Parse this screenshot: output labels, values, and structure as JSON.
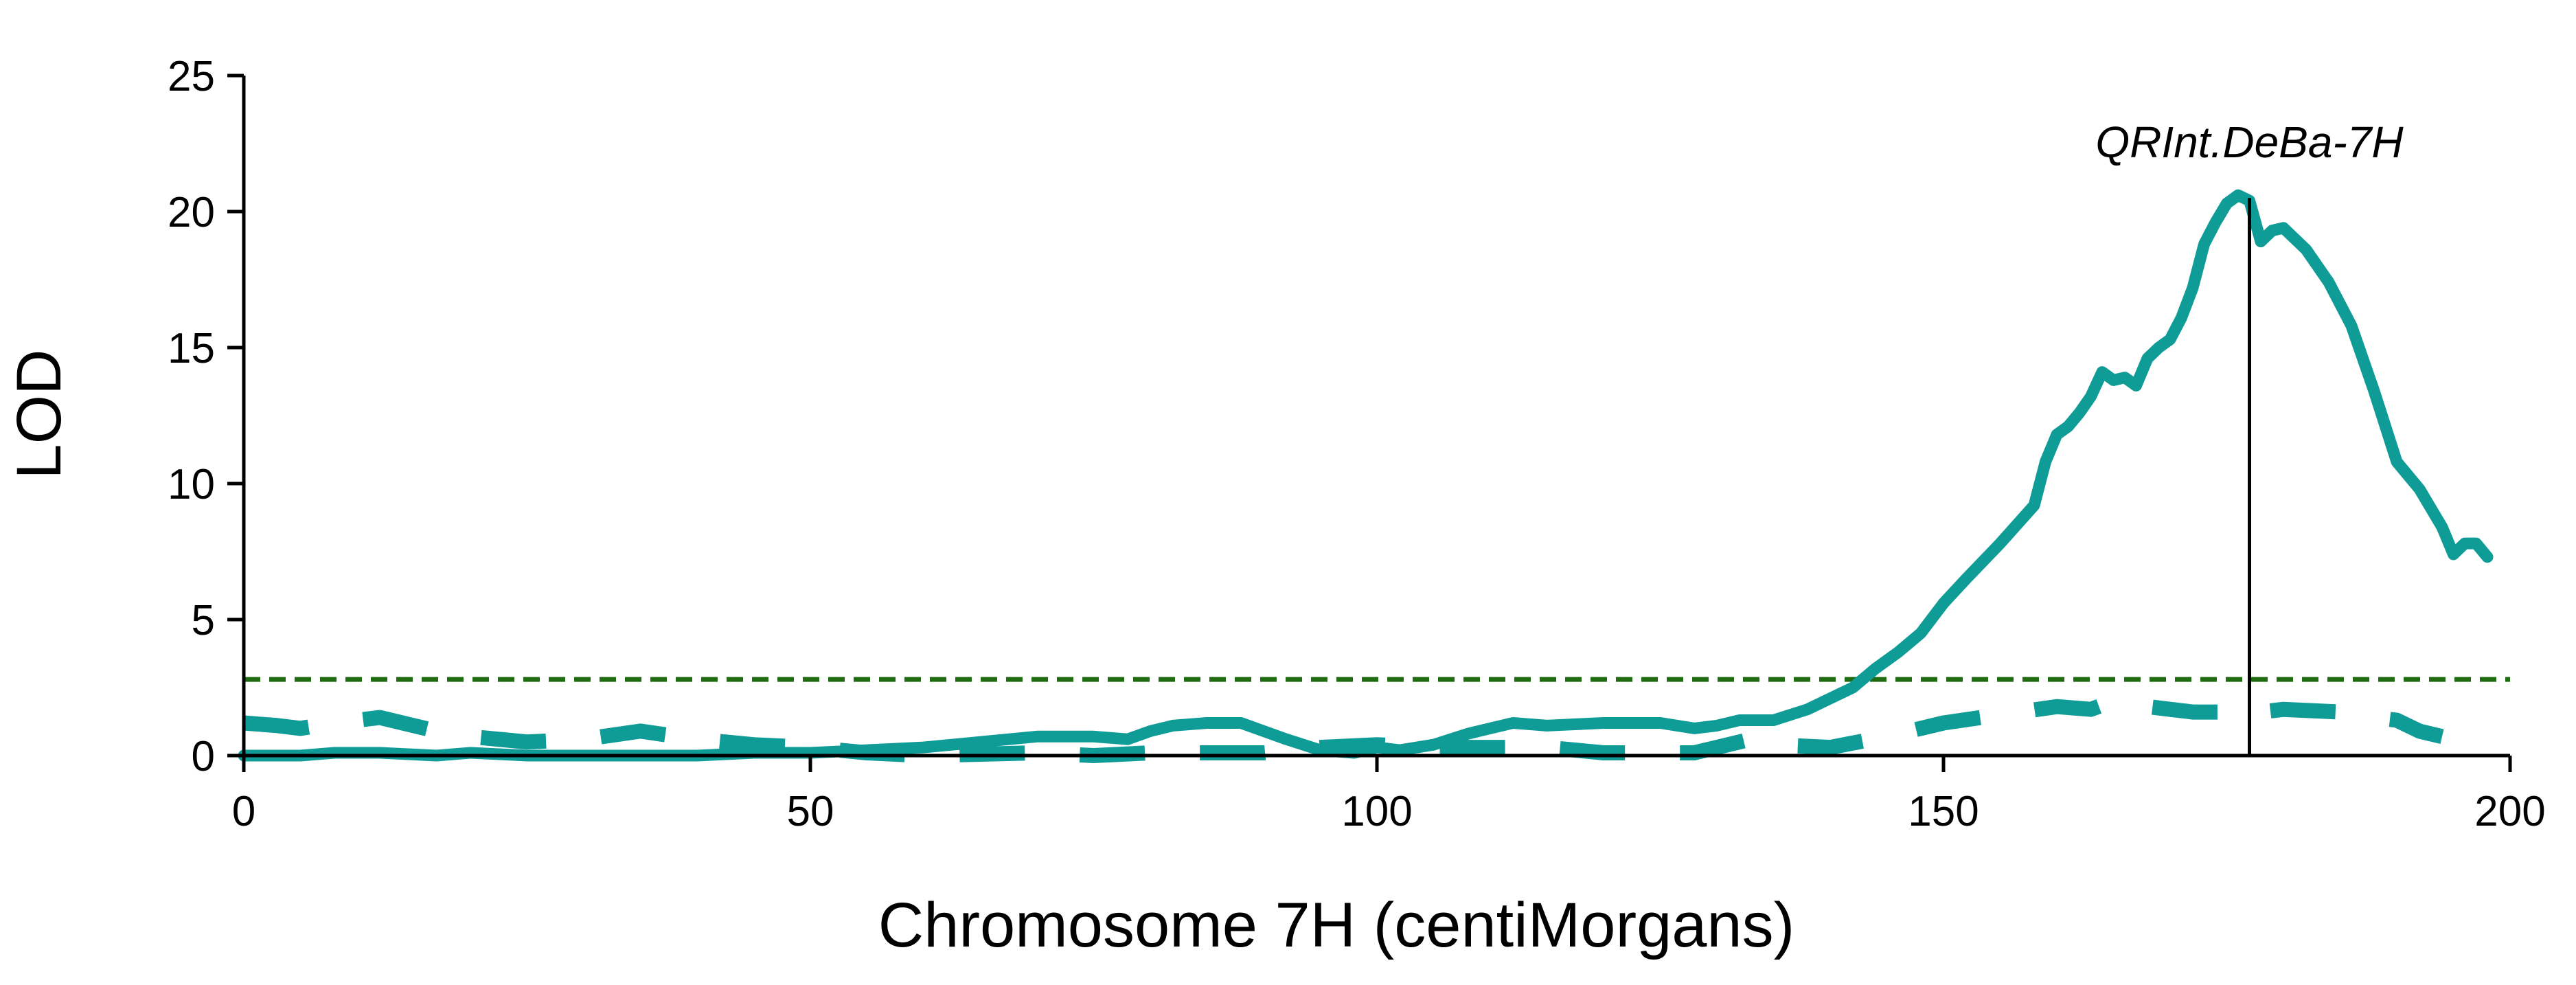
{
  "chart_data": {
    "type": "line",
    "title": "",
    "xlabel": "Chromosome 7H (centiMorgans)",
    "ylabel": "LOD",
    "xlim": [
      0,
      200
    ],
    "ylim": [
      0,
      25
    ],
    "xticks": [
      0,
      50,
      100,
      150,
      200
    ],
    "yticks": [
      0,
      5,
      10,
      15,
      20,
      25
    ],
    "grid": false,
    "threshold": {
      "y": 2.8,
      "style": "dashed",
      "color": "#1f6b12"
    },
    "peak_marker": {
      "x": 177,
      "y_top": 20.5
    },
    "annotation": {
      "text": "QRInt.DeBa-7H",
      "x": 177,
      "y": 23
    },
    "colors": {
      "series": "#0f9c96",
      "threshold": "#1f6b12",
      "axis": "#000000"
    },
    "series": [
      {
        "style": "solid",
        "x": [
          0,
          5,
          8,
          12,
          17,
          20,
          25,
          30,
          40,
          45,
          50,
          55,
          60,
          65,
          70,
          75,
          78,
          80,
          82,
          85,
          88,
          92,
          95,
          98,
          100,
          102,
          105,
          108,
          112,
          115,
          120,
          125,
          128,
          130,
          132,
          135,
          138,
          140,
          142,
          144,
          146,
          148,
          150,
          152,
          155,
          158,
          159,
          160,
          161,
          162,
          163,
          164,
          165,
          166,
          167,
          168,
          169,
          170,
          171,
          172,
          173,
          174,
          175,
          176,
          177,
          178,
          179,
          180,
          182,
          184,
          186,
          188,
          190,
          192,
          194,
          195,
          196,
          197,
          198
        ],
        "y": [
          0,
          0,
          0.1,
          0.1,
          0,
          0.1,
          0,
          0,
          0,
          0.1,
          0.1,
          0.2,
          0.3,
          0.5,
          0.7,
          0.7,
          0.6,
          0.9,
          1.1,
          1.2,
          1.2,
          0.6,
          0.2,
          0.1,
          0.3,
          0.2,
          0.4,
          0.8,
          1.2,
          1.1,
          1.2,
          1.2,
          1.0,
          1.1,
          1.3,
          1.3,
          1.7,
          2.1,
          2.5,
          3.2,
          3.8,
          4.5,
          5.6,
          6.5,
          7.8,
          9.2,
          10.8,
          11.8,
          12.1,
          12.6,
          13.2,
          14.1,
          13.8,
          13.9,
          13.6,
          14.6,
          15.0,
          15.3,
          16.1,
          17.2,
          18.8,
          19.6,
          20.3,
          20.6,
          20.4,
          18.9,
          19.3,
          19.4,
          18.6,
          17.4,
          15.8,
          13.4,
          10.8,
          9.8,
          8.4,
          7.4,
          7.8,
          7.8,
          7.3
        ]
      },
      {
        "style": "dashed",
        "x": [
          0,
          3,
          5,
          8,
          12,
          15,
          18,
          20,
          25,
          30,
          35,
          40,
          45,
          50,
          55,
          60,
          65,
          70,
          75,
          80,
          85,
          90,
          95,
          100,
          105,
          110,
          115,
          120,
          125,
          128,
          130,
          133,
          135,
          140,
          145,
          148,
          150,
          155,
          160,
          163,
          165,
          168,
          170,
          172,
          175,
          177,
          178,
          180,
          185,
          188,
          190,
          192,
          194
        ],
        "y": [
          1.2,
          1.1,
          1.0,
          1.2,
          1.4,
          1.1,
          0.8,
          0.7,
          0.5,
          0.6,
          0.9,
          0.6,
          0.4,
          0.3,
          0.1,
          0.0,
          0.05,
          0.1,
          0.0,
          0.1,
          0.1,
          0.1,
          0.3,
          0.4,
          0.3,
          0.3,
          0.3,
          0.1,
          0.1,
          0.1,
          0.3,
          0.6,
          0.4,
          0.3,
          0.7,
          1.0,
          1.2,
          1.5,
          1.8,
          1.7,
          2.0,
          1.8,
          1.7,
          1.6,
          1.6,
          1.4,
          1.6,
          1.7,
          1.6,
          1.4,
          1.3,
          0.9,
          0.7
        ]
      }
    ]
  }
}
